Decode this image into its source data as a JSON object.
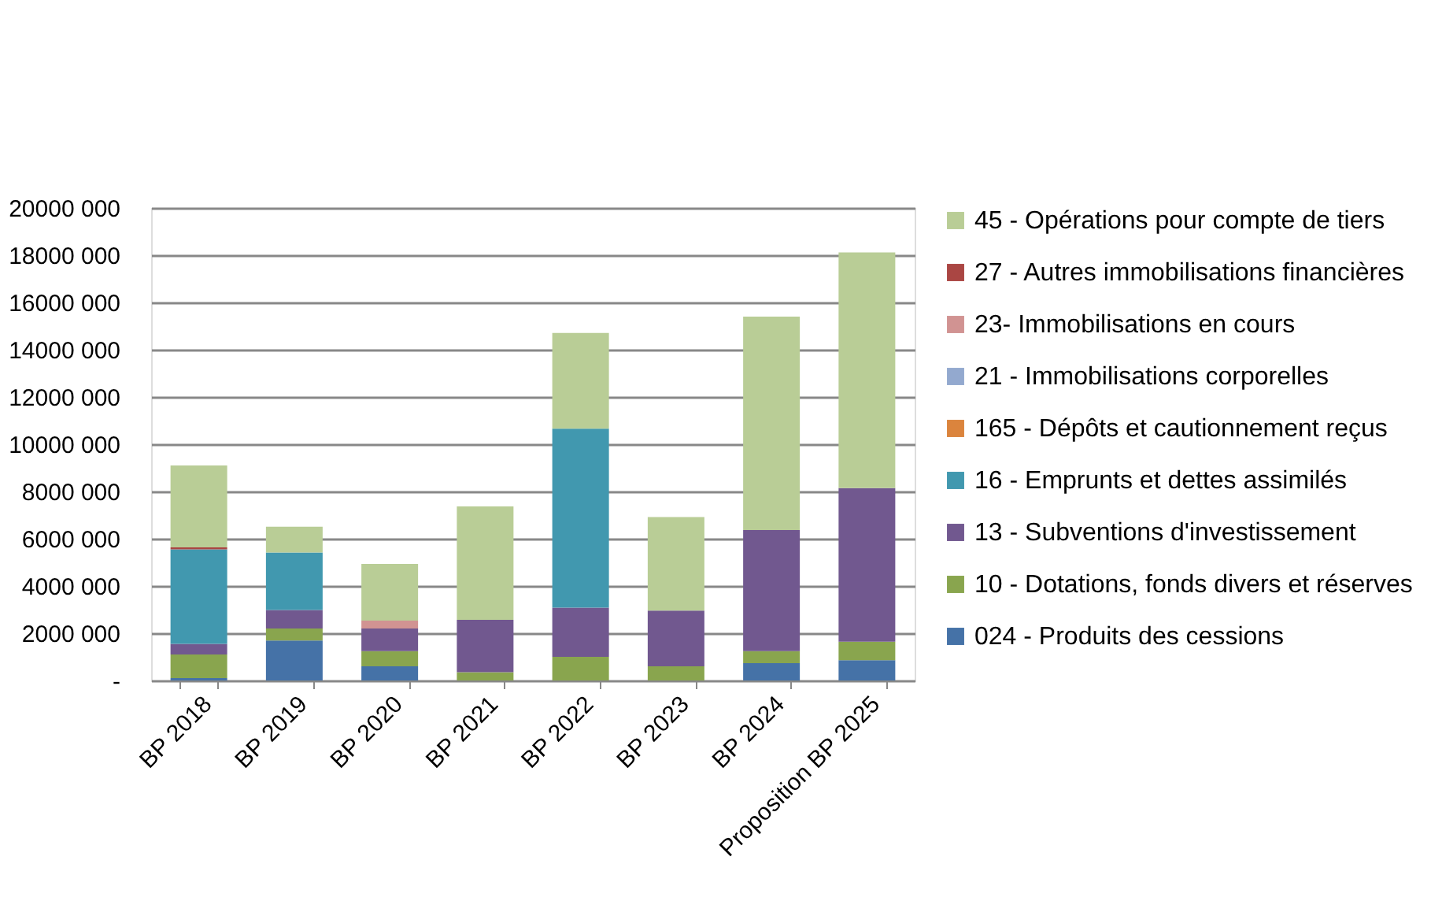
{
  "chart_data": {
    "type": "bar",
    "stacked": true,
    "legend": "right",
    "grid": "y",
    "categories": [
      "BP 2018",
      "BP 2019",
      "BP 2020",
      "BP 2021",
      "BP 2022",
      "BP 2023",
      "BP 2024",
      "Proposition BP 2025"
    ],
    "ylim": [
      0,
      20000000
    ],
    "yticks": [
      {
        "value": 0,
        "label": "-"
      },
      {
        "value": 2000000,
        "label": "2000 000"
      },
      {
        "value": 4000000,
        "label": "4000 000"
      },
      {
        "value": 6000000,
        "label": "6000 000"
      },
      {
        "value": 8000000,
        "label": "8000 000"
      },
      {
        "value": 10000000,
        "label": "10000 000"
      },
      {
        "value": 12000000,
        "label": "12000 000"
      },
      {
        "value": 14000000,
        "label": "14000 000"
      },
      {
        "value": 16000000,
        "label": "16000 000"
      },
      {
        "value": 18000000,
        "label": "18000 000"
      },
      {
        "value": 20000000,
        "label": "20000 000"
      }
    ],
    "series": [
      {
        "name": "024 - Produits des cessions",
        "color": "#4572a7",
        "values": [
          100000,
          1690000,
          600000,
          null,
          null,
          null,
          730000,
          860000
        ]
      },
      {
        "name": "10 - Dotations, fonds divers et réserves",
        "color": "#89a54e",
        "values": [
          1000000,
          510000,
          640000,
          350000,
          1000000,
          600000,
          510000,
          780000
        ]
      },
      {
        "name": "13 - Subventions d'investissement",
        "color": "#71588f",
        "values": [
          450000,
          780000,
          960000,
          2220000,
          2080000,
          2360000,
          5130000,
          6500000
        ]
      },
      {
        "name": "16 - Emprunts et dettes assimilés",
        "color": "#4198af",
        "values": [
          4000000,
          2440000,
          null,
          null,
          7580000,
          null,
          null,
          null
        ]
      },
      {
        "name": "165 - Dépôts et cautionnement reçus",
        "color": "#db843d",
        "values": [
          null,
          null,
          null,
          null,
          null,
          null,
          null,
          null
        ]
      },
      {
        "name": "21 - Immobilisations corporelles",
        "color": "#93a9cf",
        "values": [
          null,
          null,
          null,
          null,
          null,
          null,
          null,
          null
        ]
      },
      {
        "name": "23- Immobilisations en cours",
        "color": "#d19392",
        "values": [
          null,
          null,
          330000,
          null,
          null,
          null,
          null,
          null
        ]
      },
      {
        "name": "27 - Autres immobilisations financières",
        "color": "#aa4643",
        "values": [
          80000,
          null,
          null,
          null,
          null,
          null,
          null,
          null
        ]
      },
      {
        "name": "45 - Opérations pour compte de tiers",
        "color": "#b9cd96",
        "values": [
          3470000,
          1090000,
          2400000,
          4800000,
          4050000,
          3960000,
          9030000,
          9980000
        ]
      }
    ]
  }
}
